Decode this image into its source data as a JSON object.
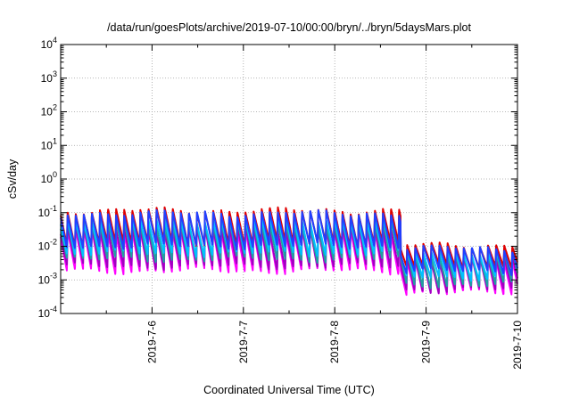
{
  "chart_data": {
    "type": "line",
    "title": "/data/run/goesPlots/archive/2019-07-10/00:00/bryn/../bryn/5daysMars.plot",
    "xlabel": "Coordinated Universal Time (UTC)",
    "ylabel": "cSv/day",
    "y_scale": "log",
    "ylim": [
      0.0001,
      10000
    ],
    "xlim": [
      "2019-07-05 00:00",
      "2019-07-10 00:00"
    ],
    "y_ticks": [
      {
        "value": 0.0001,
        "base": "10",
        "exp": "-4"
      },
      {
        "value": 0.001,
        "base": "10",
        "exp": "-3"
      },
      {
        "value": 0.01,
        "base": "10",
        "exp": "-2"
      },
      {
        "value": 0.1,
        "base": "10",
        "exp": "-1"
      },
      {
        "value": 1,
        "base": "10",
        "exp": "0"
      },
      {
        "value": 10,
        "base": "10",
        "exp": "1"
      },
      {
        "value": 100,
        "base": "10",
        "exp": "2"
      },
      {
        "value": 1000,
        "base": "10",
        "exp": "3"
      },
      {
        "value": 10000,
        "base": "10",
        "exp": "4"
      }
    ],
    "x_ticks": [
      {
        "value": 1,
        "label": "2019-7-6"
      },
      {
        "value": 2,
        "label": "2019-7-7"
      },
      {
        "value": 3,
        "label": "2019-7-8"
      },
      {
        "value": 4,
        "label": "2019-7-9"
      },
      {
        "value": 5,
        "label": "2019-7-10"
      }
    ],
    "grid": true,
    "legend": "none",
    "pattern": {
      "cycles_per_day": 11.3,
      "regime_change_day": 3.72,
      "early_peak_top": 0.12,
      "late_peak_top": 0.011
    },
    "series": [
      {
        "color": "#ff00ff",
        "early_peak": 0.03,
        "early_trough": 0.0018,
        "late_peak": 0.004,
        "late_trough": 0.0004
      },
      {
        "color": "#a000c0",
        "early_peak": 0.035,
        "early_trough": 0.0025,
        "late_peak": 0.0045,
        "late_trough": 0.0005
      },
      {
        "color": "#20a0a0",
        "early_peak": 0.05,
        "early_trough": 0.004,
        "late_peak": 0.006,
        "late_trough": 0.0007
      },
      {
        "color": "#00c0ff",
        "early_peak": 0.065,
        "early_trough": 0.006,
        "late_peak": 0.007,
        "late_trough": 0.0012
      },
      {
        "color": "#e00000",
        "early_peak": 0.12,
        "early_trough": 0.012,
        "late_peak": 0.011,
        "late_trough": 0.0025
      },
      {
        "color": "#2040ff",
        "early_peak": 0.1,
        "early_trough": 0.01,
        "late_peak": 0.009,
        "late_trough": 0.0018
      }
    ]
  }
}
